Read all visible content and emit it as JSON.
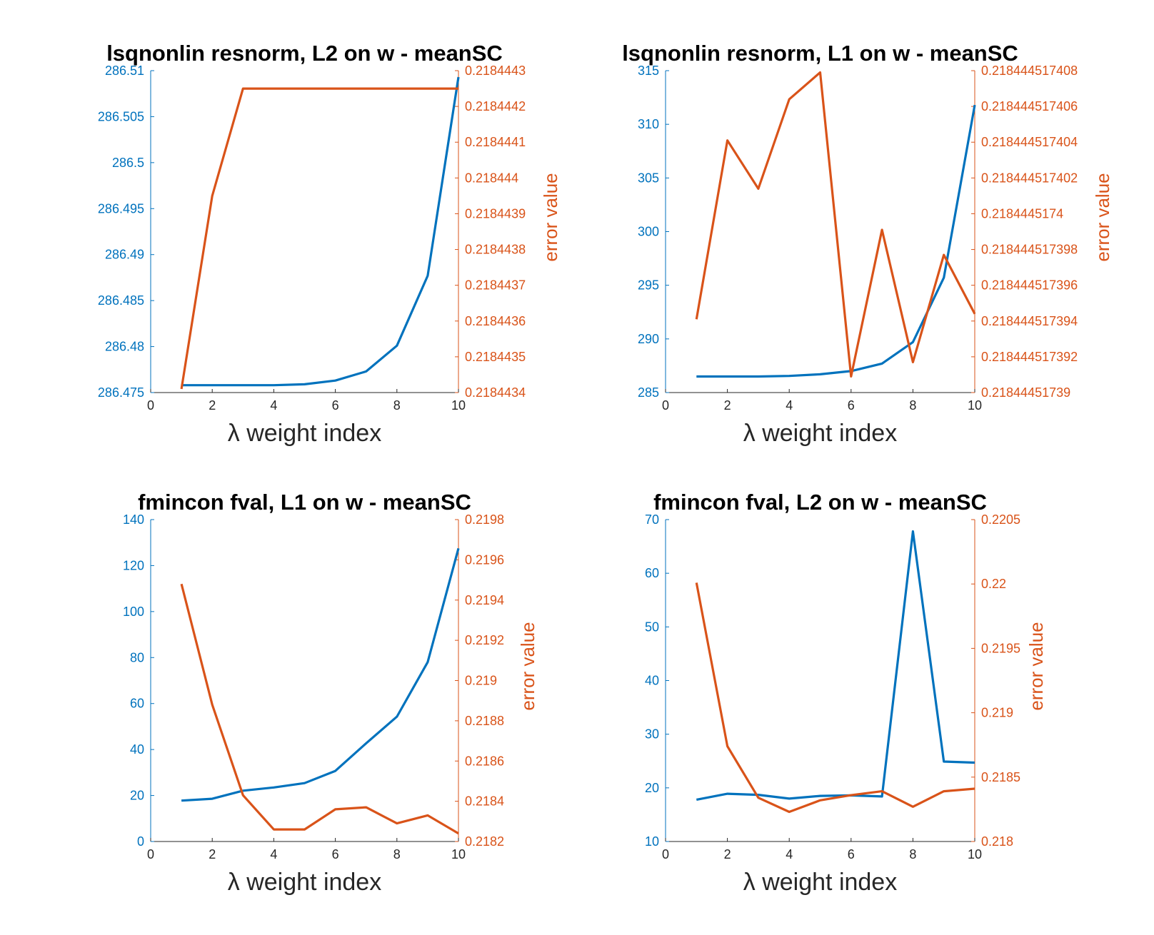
{
  "colors": {
    "left": "#0072BD",
    "right": "#D95319",
    "axis_x": "#262626"
  },
  "chart_data": [
    {
      "type": "line",
      "title": "lsqnonlin resnorm, L2 on w - meanSC",
      "xlabel": "λ weight index",
      "ylabel_right": "error value",
      "xlim": [
        0,
        10
      ],
      "xticks": [
        "0",
        "2",
        "4",
        "6",
        "8",
        "10"
      ],
      "ylim_left": [
        286.475,
        286.51
      ],
      "yticks_left": [
        "286.475",
        "286.48",
        "286.485",
        "286.49",
        "286.495",
        "286.5",
        "286.505",
        "286.51"
      ],
      "ylim_right": [
        0.2184434,
        0.2184443
      ],
      "yticks_right": [
        "0.2184434",
        "0.2184435",
        "0.2184436",
        "0.2184437",
        "0.2184438",
        "0.2184439",
        "0.218444",
        "0.2184441",
        "0.2184442",
        "0.2184443"
      ],
      "x": [
        1,
        2,
        3,
        4,
        5,
        6,
        7,
        8,
        9,
        10
      ],
      "series": [
        {
          "axis": "left",
          "values": [
            286.4758,
            286.4758,
            286.4758,
            286.4758,
            286.4759,
            286.4763,
            286.4773,
            286.4801,
            286.4877,
            286.5093
          ]
        },
        {
          "axis": "right",
          "values": [
            0.21844341,
            0.21844395,
            0.21844425,
            0.21844425,
            0.21844425,
            0.21844425,
            0.21844425,
            0.21844425,
            0.21844425,
            0.21844425
          ]
        }
      ]
    },
    {
      "type": "line",
      "title": "lsqnonlin resnorm, L1 on w - meanSC",
      "xlabel": "λ weight index",
      "ylabel_right": "error value",
      "xlim": [
        0,
        10
      ],
      "xticks": [
        "0",
        "2",
        "4",
        "6",
        "8",
        "10"
      ],
      "ylim_left": [
        285,
        315
      ],
      "yticks_left": [
        "285",
        "290",
        "295",
        "300",
        "305",
        "310",
        "315"
      ],
      "ylim_right": [
        0.21844451739,
        0.218444517408
      ],
      "yticks_right": [
        "0.21844451739",
        "0.218444517392",
        "0.218444517394",
        "0.218444517396",
        "0.218444517398",
        "0.2184445174",
        "0.218444517402",
        "0.218444517404",
        "0.218444517406",
        "0.218444517408"
      ],
      "x": [
        1,
        2,
        3,
        4,
        5,
        6,
        7,
        8,
        9,
        10
      ],
      "series": [
        {
          "axis": "left",
          "values": [
            286.5,
            286.5,
            286.5,
            286.55,
            286.7,
            287.0,
            287.7,
            289.7,
            295.7,
            311.8
          ]
        },
        {
          "axis": "right",
          "values": [
            0.2184445173941,
            0.2184445174041,
            0.2184445174014,
            0.2184445174064,
            0.2184445174079,
            0.2184445173909,
            0.2184445173991,
            0.2184445173917,
            0.2184445173977,
            0.2184445173944
          ]
        }
      ]
    },
    {
      "type": "line",
      "title": "fmincon fval, L1 on w - meanSC",
      "xlabel": "λ weight index",
      "ylabel_right": "error value",
      "xlim": [
        0,
        10
      ],
      "xticks": [
        "0",
        "2",
        "4",
        "6",
        "8",
        "10"
      ],
      "ylim_left": [
        0,
        140
      ],
      "yticks_left": [
        "0",
        "20",
        "40",
        "60",
        "80",
        "100",
        "120",
        "140"
      ],
      "ylim_right": [
        0.2182,
        0.2198
      ],
      "yticks_right": [
        "0.2182",
        "0.2184",
        "0.2186",
        "0.2188",
        "0.219",
        "0.2192",
        "0.2194",
        "0.2196",
        "0.2198"
      ],
      "x": [
        1,
        2,
        3,
        4,
        5,
        6,
        7,
        8,
        9,
        10
      ],
      "series": [
        {
          "axis": "left",
          "values": [
            17.8,
            18.6,
            22.1,
            23.5,
            25.4,
            30.7,
            42.7,
            54.3,
            78.0,
            127.5
          ]
        },
        {
          "axis": "right",
          "values": [
            0.21948,
            0.21888,
            0.21843,
            0.21826,
            0.21826,
            0.21836,
            0.21837,
            0.21829,
            0.21833,
            0.21824
          ]
        }
      ]
    },
    {
      "type": "line",
      "title": "fmincon fval, L2 on w - meanSC",
      "xlabel": "λ weight index",
      "ylabel_right": "error value",
      "xlim": [
        0,
        10
      ],
      "xticks": [
        "0",
        "2",
        "4",
        "6",
        "8",
        "10"
      ],
      "ylim_left": [
        10,
        70
      ],
      "yticks_left": [
        "10",
        "20",
        "30",
        "40",
        "50",
        "60",
        "70"
      ],
      "ylim_right": [
        0.218,
        0.2205
      ],
      "yticks_right": [
        "0.218",
        "0.2185",
        "0.219",
        "0.2195",
        "0.22",
        "0.2205"
      ],
      "x": [
        1,
        2,
        3,
        4,
        5,
        6,
        7,
        8,
        9,
        10
      ],
      "series": [
        {
          "axis": "left",
          "values": [
            17.8,
            18.9,
            18.7,
            18.0,
            18.5,
            18.6,
            18.4,
            67.8,
            24.9,
            24.7
          ]
        },
        {
          "axis": "right",
          "values": [
            0.22001,
            0.21874,
            0.21834,
            0.21823,
            0.21832,
            0.21836,
            0.21839,
            0.21827,
            0.21839,
            0.21841
          ]
        }
      ]
    }
  ]
}
